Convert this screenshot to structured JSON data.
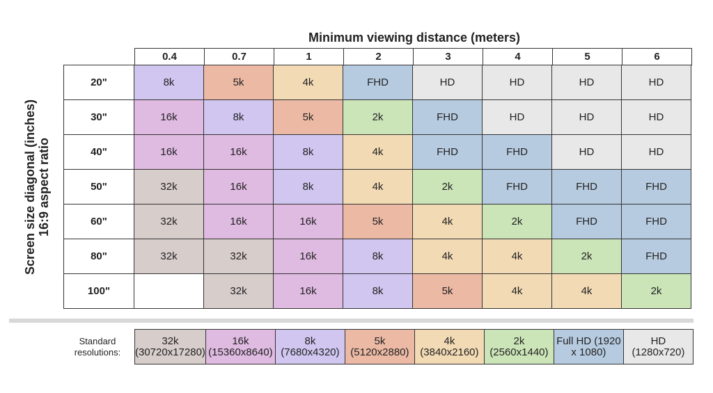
{
  "colors": {
    "32k": "#d7cdcb",
    "16k": "#dfbae1",
    "8k": "#d0c6f0",
    "5k": "#ecb9a4",
    "4k": "#f2dab4",
    "2k": "#cbe5b8",
    "FHD": "#b7cbe0",
    "HD": "#e8e8e8",
    "empty": "#ffffff"
  },
  "chart_data": {
    "type": "table",
    "title": "Minimum viewing distance (meters)",
    "xlabel": "Minimum viewing distance (meters)",
    "ylabel": "Screen size diagonal (inches) 16:9 aspect ratio",
    "columns": [
      "0.4",
      "0.7",
      "1",
      "2",
      "3",
      "4",
      "5",
      "6"
    ],
    "rows": [
      "20\"",
      "30\"",
      "40\"",
      "50\"",
      "60\"",
      "80\"",
      "100\""
    ],
    "values": [
      [
        "8k",
        "5k",
        "4k",
        "FHD",
        "HD",
        "HD",
        "HD",
        "HD"
      ],
      [
        "16k",
        "8k",
        "5k",
        "2k",
        "FHD",
        "HD",
        "HD",
        "HD"
      ],
      [
        "16k",
        "16k",
        "8k",
        "4k",
        "FHD",
        "FHD",
        "HD",
        "HD"
      ],
      [
        "32k",
        "16k",
        "8k",
        "4k",
        "2k",
        "FHD",
        "FHD",
        "FHD"
      ],
      [
        "32k",
        "16k",
        "16k",
        "5k",
        "4k",
        "2k",
        "FHD",
        "FHD"
      ],
      [
        "32k",
        "32k",
        "16k",
        "8k",
        "4k",
        "4k",
        "2k",
        "FHD"
      ],
      [
        "",
        "32k",
        "16k",
        "8k",
        "5k",
        "4k",
        "4k",
        "2k"
      ]
    ],
    "legend": {
      "label": "Standard resolutions:",
      "entries": [
        {
          "key": "32k",
          "text": "32k (30720x17280)"
        },
        {
          "key": "16k",
          "text": "16k (15360x8640)"
        },
        {
          "key": "8k",
          "text": "8k (7680x4320)"
        },
        {
          "key": "5k",
          "text": "5k (5120x2880)"
        },
        {
          "key": "4k",
          "text": "4k (3840x2160)"
        },
        {
          "key": "2k",
          "text": "2k (2560x1440)"
        },
        {
          "key": "FHD",
          "text": "Full HD (1920 x 1080)"
        },
        {
          "key": "HD",
          "text": "HD (1280x720)"
        }
      ]
    }
  },
  "labels": {
    "title": "Minimum viewing distance (meters)",
    "ylabel_line1": "Screen size diagonal (inches)",
    "ylabel_line2": "16:9 aspect ratio",
    "legend_line1": "Standard",
    "legend_line2": "resolutions:"
  }
}
